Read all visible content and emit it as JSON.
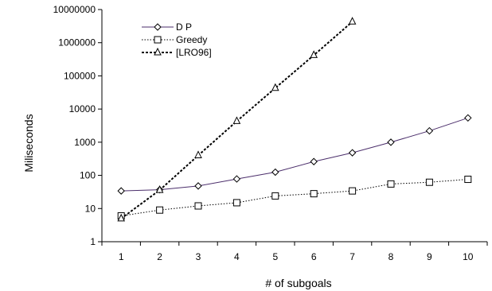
{
  "chart_data": {
    "type": "line",
    "title": "",
    "xlabel": "# of subgoals",
    "ylabel": "Miliseconds",
    "yscale": "log",
    "ylim": [
      1,
      10000000
    ],
    "xlim": [
      0.5,
      10.5
    ],
    "grid": false,
    "legend_position": "top-left",
    "x": [
      1,
      2,
      3,
      4,
      5,
      6,
      7,
      8,
      9,
      10
    ],
    "y_ticks": [
      "1",
      "10",
      "100",
      "1000",
      "10000",
      "100000",
      "1000000",
      "10000000"
    ],
    "series": [
      {
        "name": "D P",
        "marker": "diamond",
        "line_style": "solid",
        "color": "#4b2e6b",
        "x": [
          1,
          2,
          3,
          4,
          5,
          6,
          7,
          8,
          9,
          10
        ],
        "values": [
          34,
          37,
          48,
          78,
          125,
          260,
          480,
          1000,
          2200,
          5400
        ]
      },
      {
        "name": "Greedy",
        "marker": "square",
        "line_style": "dotted",
        "color": "#000000",
        "x": [
          1,
          2,
          3,
          4,
          5,
          6,
          7,
          8,
          9,
          10
        ],
        "values": [
          6,
          9,
          12,
          15,
          24,
          28,
          34,
          55,
          62,
          76
        ]
      },
      {
        "name": "[LRO96]",
        "marker": "triangle",
        "line_style": "dashed",
        "color": "#000000",
        "x": [
          1,
          2,
          3,
          4,
          5,
          6,
          7
        ],
        "values": [
          5,
          36,
          400,
          4300,
          43000,
          420000,
          4300000
        ]
      }
    ]
  }
}
